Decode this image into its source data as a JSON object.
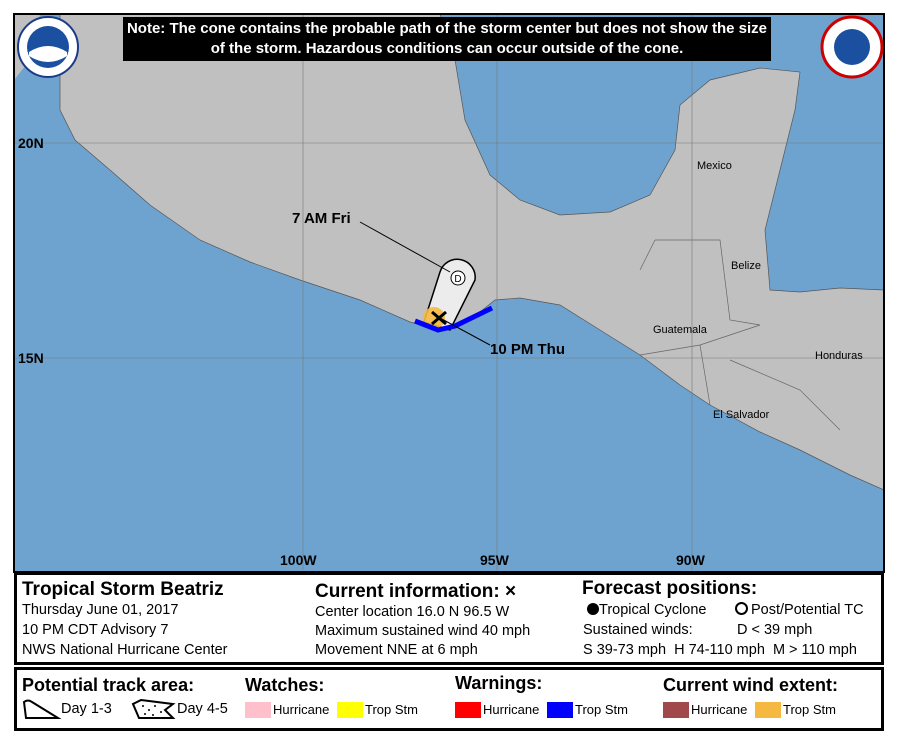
{
  "note": "Note: The cone contains the probable path of the storm center but does not show the size of the storm. Hazardous conditions can occur outside of the cone.",
  "logos": {
    "left": "NOAA",
    "right": "National Weather Service"
  },
  "map": {
    "lat_labels": [
      "20N",
      "15N"
    ],
    "lon_labels": [
      "100W",
      "95W",
      "90W"
    ],
    "country_labels": [
      "Mexico",
      "Belize",
      "Guatemala",
      "Honduras",
      "El Salvador"
    ],
    "forecast_labels": [
      "7 AM Fri",
      "10 PM Thu"
    ],
    "forecast_marker": "D",
    "colors": {
      "land": "#c0c0c0",
      "ocean": "#6fa3cf",
      "trop_storm_warning": "#0000ff",
      "trop_storm_wind": "#f5b942",
      "cone": "#ececec"
    }
  },
  "info": {
    "title": "Tropical Storm Beatriz",
    "date": "Thursday June 01, 2017",
    "advisory": "10 PM CDT Advisory 7",
    "center": "NWS National Hurricane Center",
    "current_heading": "Current information: ×",
    "location": "Center location 16.0 N 96.5 W",
    "wind": "Maximum sustained wind 40 mph",
    "movement": "Movement NNE at 6 mph",
    "forecast_heading": "Forecast positions:",
    "tropical_cyclone": "Tropical Cyclone",
    "post_potential": "Post/Potential TC",
    "sustained": "Sustained winds:",
    "d_def": "D < 39 mph",
    "shm_def": "S 39-73 mph  H 74-110 mph  M > 110 mph"
  },
  "legend": {
    "track_heading": "Potential track area:",
    "day13": "Day 1-3",
    "day45": "Day 4-5",
    "watches_heading": "Watches:",
    "warnings_heading": "Warnings:",
    "wind_heading": "Current wind extent:",
    "hurricane": "Hurricane",
    "trop_stm": "Trop Stm",
    "colors": {
      "hurricane_watch": "#ffc0cb",
      "ts_watch": "#ffff00",
      "hurricane_warning": "#ff0000",
      "ts_warning": "#0000ff",
      "hurricane_wind": "#a0484a",
      "ts_wind": "#f5b942"
    }
  }
}
